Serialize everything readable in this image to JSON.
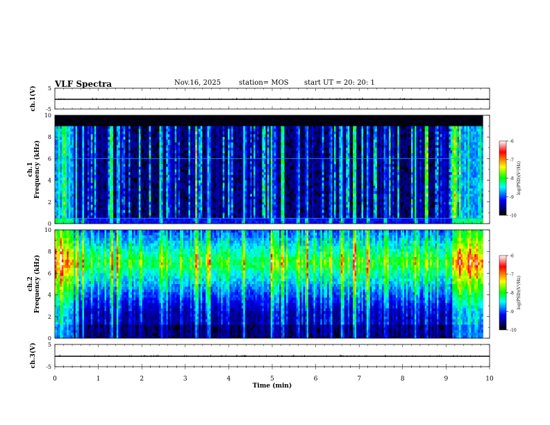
{
  "header": {
    "title": "VLF Spectra",
    "date": "Nov.16, 2025",
    "station": "station= MOS",
    "start_ut": "start  UT  =   20: 20: 1"
  },
  "colorbar": {
    "label": "log(PSD)(V²/Hz)",
    "ticks": [
      "-6",
      "-7",
      "-8",
      "-9",
      "-10"
    ],
    "colors": [
      "#ffffff",
      "#ff0000",
      "#ffff00",
      "#00ff00",
      "#00ffff",
      "#0000ff",
      "#000000"
    ]
  },
  "chart_data": [
    {
      "type": "line",
      "name": "ch1-voltage",
      "ylabel": "ch.1(V)",
      "ylim": [
        -5,
        5
      ],
      "ytick_labels": [
        "5",
        "-5"
      ],
      "xlim": [
        0,
        10
      ],
      "series": [
        {
          "name": "ch.1 voltage",
          "x": [
            0.0,
            10.0
          ],
          "y": [
            0,
            0
          ]
        }
      ]
    },
    {
      "type": "heatmap",
      "name": "ch1-spectrogram",
      "ylabel": "ch.1\nFrequency (kHz)",
      "ylim": [
        0,
        10
      ],
      "ytick_labels": [
        "0",
        "2",
        "4",
        "6",
        "8",
        "10"
      ],
      "xlim": [
        0,
        9.85
      ],
      "color_label": "log(PSD)(V²/Hz)",
      "color_range": [
        -10,
        -6
      ],
      "band_top_khz": 9.0,
      "lines_khz": [
        0.5,
        6.0
      ],
      "bright_columns_min": [
        0.5,
        0.65,
        1.3,
        1.45,
        2.45,
        3.25,
        3.55,
        4.35,
        5.0,
        5.25,
        5.6,
        5.8,
        6.35,
        6.6,
        6.9,
        7.2,
        7.6,
        8.3,
        8.55
      ],
      "dense_segments_min": [
        [
          0.0,
          0.45
        ],
        [
          9.15,
          9.85
        ]
      ]
    },
    {
      "type": "heatmap",
      "name": "ch2-spectrogram",
      "ylabel": "ch.2\nFrequency (kHz)",
      "ylim": [
        0,
        10
      ],
      "ytick_labels": [
        "0",
        "2",
        "4",
        "6",
        "8",
        "10"
      ],
      "xlim": [
        0,
        9.85
      ],
      "color_label": "log(PSD)(V²/Hz)",
      "color_range": [
        -10,
        -6
      ],
      "band_center_khz": 7.0,
      "bright_columns_min": [
        0.5,
        0.65,
        1.3,
        1.45,
        2.45,
        3.25,
        3.55,
        4.35,
        5.0,
        5.25,
        5.6,
        5.8,
        6.35,
        6.6,
        6.9,
        7.2,
        7.6,
        8.3,
        8.55
      ],
      "dense_segments_min": [
        [
          0.0,
          0.45
        ],
        [
          9.15,
          9.85
        ]
      ]
    },
    {
      "type": "line",
      "name": "ch3-voltage",
      "ylabel": "ch.3(V)",
      "ylim": [
        -5,
        5
      ],
      "ytick_labels": [
        "5",
        "-5"
      ],
      "xlim": [
        0,
        10
      ],
      "xlabel": "Time  (min)",
      "xtick_labels": [
        "0",
        "1",
        "2",
        "3",
        "4",
        "5",
        "6",
        "7",
        "8",
        "9",
        "10"
      ],
      "series": [
        {
          "name": "ch.3 voltage",
          "x": [
            0.0,
            10.0
          ],
          "y": [
            0,
            0
          ]
        }
      ]
    }
  ]
}
